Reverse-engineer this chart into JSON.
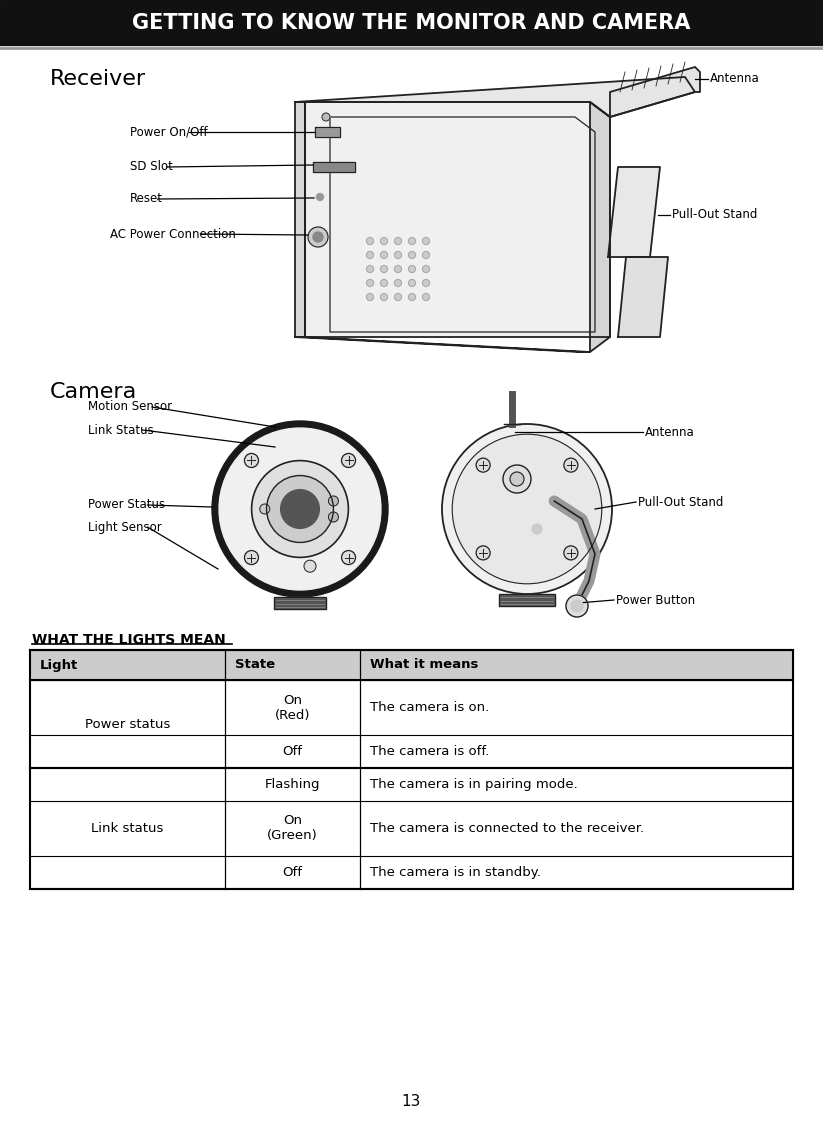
{
  "title": "GETTING TO KNOW THE MONITOR AND CAMERA",
  "title_bg": "#111111",
  "title_color": "#ffffff",
  "title_fontsize": 15,
  "page_bg": "#ffffff",
  "page_number": "13",
  "receiver_label": "Receiver",
  "camera_label": "Camera",
  "receiver_labels_left": [
    "Power On/Off",
    "SD Slot",
    "Reset",
    "AC Power Connection"
  ],
  "receiver_labels_right": [
    "Antenna",
    "Pull-Out Stand"
  ],
  "camera_labels_left": [
    "Motion Sensor",
    "Link Status",
    "Power Status",
    "Light Sensor"
  ],
  "camera_labels_right": [
    "Antenna",
    "Pull-Out Stand",
    "Power Button"
  ],
  "table_title": "WHAT THE LIGHTS MEAN",
  "table_headers": [
    "Light",
    "State",
    "What it means"
  ],
  "table_col1": [
    "Power status",
    "",
    "Link status",
    "",
    ""
  ],
  "table_col2": [
    "On\n(Red)",
    "Off",
    "Flashing",
    "On\n(Green)",
    "Off"
  ],
  "table_col3": [
    "The camera is on.",
    "The camera is off.",
    "The camera is in pairing mode.",
    "The camera is connected to the receiver.",
    "The camera is in standby."
  ],
  "header_bg": "#cccccc",
  "table_border": "#000000",
  "diagram_line_color": "#222222",
  "diagram_fill_light": "#f5f5f5",
  "diagram_fill_mid": "#dddddd",
  "diagram_fill_dark": "#888888"
}
